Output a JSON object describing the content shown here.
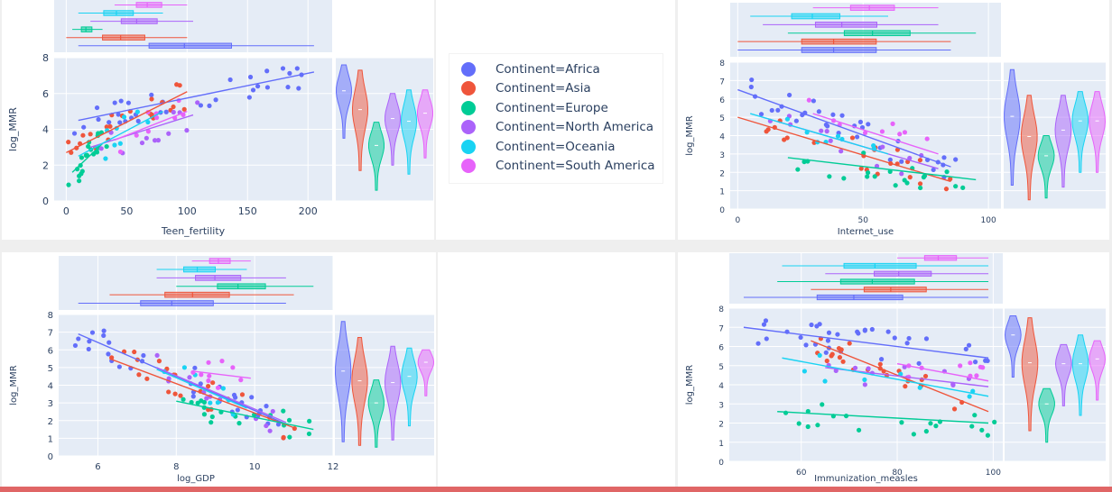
{
  "legend": {
    "items": [
      {
        "label": "Continent=Africa",
        "color": "#636efa"
      },
      {
        "label": "Continent=Asia",
        "color": "#EF553B"
      },
      {
        "label": "Continent=Europe",
        "color": "#00cc96"
      },
      {
        "label": "Continent=North America",
        "color": "#ab63fa"
      },
      {
        "label": "Continent=Oceania",
        "color": "#19d3f3"
      },
      {
        "label": "Continent=South America",
        "color": "#e763fa"
      }
    ]
  },
  "chart_data": [
    {
      "type": "scatter",
      "xlabel": "Teen_fertility",
      "ylabel": "log_MMR",
      "xlim": [
        -10,
        220
      ],
      "ylim": [
        0,
        8
      ],
      "xticks": [
        0,
        50,
        100,
        150,
        200
      ],
      "yticks": [
        0,
        2,
        4,
        6,
        8
      ],
      "marginal_x": "box",
      "marginal_y": "violin",
      "trendline": "ols",
      "series": [
        {
          "name": "Africa",
          "trend": [
            [
              10,
              4.5
            ],
            [
              205,
              7.2
            ]
          ]
        },
        {
          "name": "Asia",
          "trend": [
            [
              0,
              2.7
            ],
            [
              100,
              6.1
            ]
          ]
        },
        {
          "name": "Europe",
          "trend": [
            [
              5,
              1.6
            ],
            [
              30,
              3.2
            ]
          ]
        },
        {
          "name": "North America",
          "trend": [
            [
              20,
              3.0
            ],
            [
              105,
              4.8
            ]
          ]
        },
        {
          "name": "Oceania",
          "trend": [
            [
              10,
              2.5
            ],
            [
              80,
              5.0
            ]
          ]
        },
        {
          "name": "South America",
          "trend": [
            [
              40,
              3.4
            ],
            [
              100,
              5.0
            ]
          ]
        }
      ]
    },
    {
      "type": "scatter",
      "xlabel": "Internet_use",
      "ylabel": "log_MMR",
      "xlim": [
        -3,
        105
      ],
      "ylim": [
        0,
        8
      ],
      "xticks": [
        0,
        50,
        100
      ],
      "yticks": [
        0,
        1,
        2,
        3,
        4,
        5,
        6,
        7,
        8
      ],
      "marginal_x": "box",
      "marginal_y": "violin",
      "trendline": "ols",
      "series": [
        {
          "name": "Africa",
          "trend": [
            [
              0,
              6.5
            ],
            [
              85,
              2.3
            ]
          ]
        },
        {
          "name": "Asia",
          "trend": [
            [
              0,
              5.0
            ],
            [
              85,
              1.5
            ]
          ]
        },
        {
          "name": "Europe",
          "trend": [
            [
              20,
              2.8
            ],
            [
              95,
              1.6
            ]
          ]
        },
        {
          "name": "North America",
          "trend": [
            [
              10,
              5.0
            ],
            [
              80,
              2.2
            ]
          ]
        },
        {
          "name": "Oceania",
          "trend": [
            [
              5,
              5.2
            ],
            [
              60,
              3.0
            ]
          ]
        },
        {
          "name": "South America",
          "trend": [
            [
              30,
              5.2
            ],
            [
              80,
              3.0
            ]
          ]
        }
      ]
    },
    {
      "type": "scatter",
      "xlabel": "log_GDP",
      "ylabel": "log_MMR",
      "xlim": [
        5,
        12
      ],
      "ylim": [
        0,
        8
      ],
      "xticks": [
        6,
        8,
        10,
        12
      ],
      "yticks": [
        0,
        1,
        2,
        3,
        4,
        5,
        6,
        7,
        8
      ],
      "marginal_x": "box",
      "marginal_y": "violin",
      "trendline": "ols",
      "series": [
        {
          "name": "Africa",
          "trend": [
            [
              5.5,
              6.9
            ],
            [
              10.8,
              1.8
            ]
          ]
        },
        {
          "name": "Asia",
          "trend": [
            [
              6.3,
              5.5
            ],
            [
              11.0,
              1.6
            ]
          ]
        },
        {
          "name": "Europe",
          "trend": [
            [
              8.0,
              3.1
            ],
            [
              11.5,
              1.5
            ]
          ]
        },
        {
          "name": "North America",
          "trend": [
            [
              7.5,
              5.0
            ],
            [
              10.8,
              1.9
            ]
          ]
        },
        {
          "name": "Oceania",
          "trend": [
            [
              7.5,
              4.9
            ],
            [
              9.8,
              2.7
            ]
          ]
        },
        {
          "name": "South America",
          "trend": [
            [
              8.4,
              4.8
            ],
            [
              9.9,
              4.4
            ]
          ]
        }
      ]
    },
    {
      "type": "scatter",
      "xlabel": "Immunization_measles",
      "ylabel": "log_MMR",
      "xlim": [
        45,
        102
      ],
      "ylim": [
        0,
        8
      ],
      "xticks": [
        60,
        80,
        100
      ],
      "yticks": [
        0,
        1,
        2,
        3,
        4,
        5,
        6,
        7,
        8
      ],
      "marginal_x": "box",
      "marginal_y": "violin",
      "trendline": "ols",
      "series": [
        {
          "name": "Africa",
          "trend": [
            [
              48,
              7.0
            ],
            [
              99,
              5.4
            ]
          ]
        },
        {
          "name": "Asia",
          "trend": [
            [
              62,
              6.3
            ],
            [
              99,
              2.6
            ]
          ]
        },
        {
          "name": "Europe",
          "trend": [
            [
              55,
              2.6
            ],
            [
              99,
              2.0
            ]
          ]
        },
        {
          "name": "North America",
          "trend": [
            [
              65,
              4.9
            ],
            [
              99,
              3.9
            ]
          ]
        },
        {
          "name": "Oceania",
          "trend": [
            [
              56,
              5.4
            ],
            [
              99,
              3.4
            ]
          ]
        },
        {
          "name": "South America",
          "trend": [
            [
              80,
              5.1
            ],
            [
              99,
              4.2
            ]
          ]
        }
      ]
    }
  ]
}
